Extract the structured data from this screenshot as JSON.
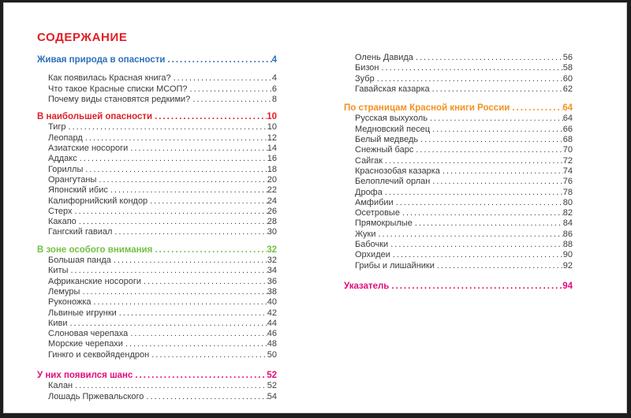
{
  "title": "СОДЕРЖАНИЕ",
  "colors": {
    "title": "#e01f26",
    "body_text": "#3b3b3b",
    "page_background": "#ffffff"
  },
  "columns": {
    "left": {
      "sections": [
        {
          "heading": {
            "label": "Живая природа в опасности",
            "page": "4",
            "color": "#2d70b8"
          },
          "items": [
            {
              "label": "Как появилась Красная книга?",
              "page": "4"
            },
            {
              "label": "Что такое Красные списки МСОП?",
              "page": "6"
            },
            {
              "label": "Почему виды становятся редкими?",
              "page": "8"
            }
          ]
        },
        {
          "heading": {
            "label": "В наибольшей опасности",
            "page": "10",
            "color": "#e01f26"
          },
          "items": [
            {
              "label": "Тигр",
              "page": "10"
            },
            {
              "label": "Леопард",
              "page": "12"
            },
            {
              "label": "Азиатские носороги",
              "page": "14"
            },
            {
              "label": "Аддакс",
              "page": "16"
            },
            {
              "label": "Гориллы",
              "page": "18"
            },
            {
              "label": "Орангутаны",
              "page": "20"
            },
            {
              "label": "Японский ибис",
              "page": "22"
            },
            {
              "label": "Калифорнийский кондор",
              "page": "24"
            },
            {
              "label": "Стерх",
              "page": "26"
            },
            {
              "label": "Какапо",
              "page": "28"
            },
            {
              "label": "Гангский гавиал",
              "page": "30"
            }
          ]
        },
        {
          "heading": {
            "label": "В зоне особого внимания",
            "page": "32",
            "color": "#72bf44"
          },
          "items": [
            {
              "label": "Большая панда",
              "page": "32"
            },
            {
              "label": "Киты",
              "page": "34"
            },
            {
              "label": "Африканские носороги",
              "page": "36"
            },
            {
              "label": "Лемуры",
              "page": "38"
            },
            {
              "label": "Руконожка",
              "page": "40"
            },
            {
              "label": "Львиные игрунки",
              "page": "42"
            },
            {
              "label": "Киви",
              "page": "44"
            },
            {
              "label": "Слоновая черепаха",
              "page": "46"
            },
            {
              "label": "Морские черепахи",
              "page": "48"
            },
            {
              "label": "Гинкго и секвойядендрон",
              "page": "50"
            }
          ]
        },
        {
          "heading": {
            "label": "У них появился шанс",
            "page": "52",
            "color": "#e30c7c"
          },
          "items": [
            {
              "label": "Калан",
              "page": "52"
            },
            {
              "label": "Лошадь Пржевальского",
              "page": "54"
            }
          ]
        }
      ]
    },
    "right": {
      "sections": [
        {
          "heading": null,
          "items": [
            {
              "label": "Олень Давида",
              "page": "56"
            },
            {
              "label": "Бизон",
              "page": "58"
            },
            {
              "label": "Зубр",
              "page": "60"
            },
            {
              "label": "Гавайская казарка",
              "page": "62"
            }
          ]
        },
        {
          "heading": {
            "label": "По страницам Красной книги России",
            "page": "64",
            "color": "#f39222"
          },
          "items": [
            {
              "label": "Русская выхухоль",
              "page": "64"
            },
            {
              "label": "Медновский песец",
              "page": "66"
            },
            {
              "label": "Белый медведь",
              "page": "68"
            },
            {
              "label": "Снежный барс",
              "page": "70"
            },
            {
              "label": "Сайгак",
              "page": "72"
            },
            {
              "label": "Краснозобая казарка",
              "page": "74"
            },
            {
              "label": "Белоплечий орлан",
              "page": "76"
            },
            {
              "label": "Дрофа",
              "page": "78"
            },
            {
              "label": "Амфибии",
              "page": "80"
            },
            {
              "label": "Осетровые",
              "page": "82"
            },
            {
              "label": "Прямокрылые",
              "page": "84"
            },
            {
              "label": "Жуки",
              "page": "86"
            },
            {
              "label": "Бабочки",
              "page": "88"
            },
            {
              "label": "Орхидеи",
              "page": "90"
            },
            {
              "label": "Грибы и лишайники",
              "page": "92"
            }
          ]
        },
        {
          "heading": {
            "label": "Указатель",
            "page": "94",
            "color": "#e30c7c"
          },
          "items": []
        }
      ]
    }
  }
}
